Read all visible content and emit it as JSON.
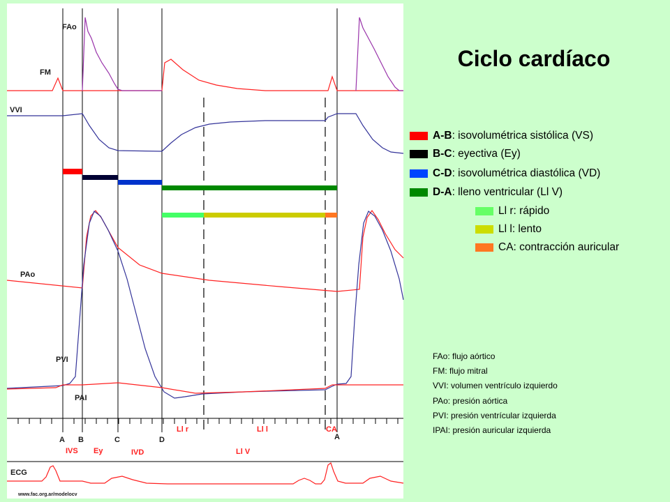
{
  "title": "Ciclo cardíaco",
  "trace_labels": {
    "fao": "FAo",
    "fm": "FM",
    "vvi": "VVI",
    "pao": "PAo",
    "pvi": "PVI",
    "pai": "PAI",
    "ecg": "ECG"
  },
  "markers": {
    "A": "A",
    "B": "B",
    "C": "C",
    "D": "D",
    "A2": "A"
  },
  "phase_labels": {
    "ivs": "IVS",
    "ey": "Ey",
    "ivd": "IVD",
    "llr": "Ll r",
    "lll": "Ll l",
    "ca": "CA",
    "llv": "Ll V"
  },
  "url": "www.fac.org.ar/modelocv",
  "legend": [
    {
      "key": "A-B",
      "text": ": isovolumétrica sistólica (VS)",
      "color": "#ff0000"
    },
    {
      "key": "B-C",
      "text": ": eyectiva (Ey)",
      "color": "#000000"
    },
    {
      "key": "C-D",
      "text": ": isovolumétrica diastólica (VD)",
      "color": "#0044ff"
    },
    {
      "key": "D-A",
      "text": ": lleno ventricular (Ll V)",
      "color": "#008800"
    },
    {
      "key": "",
      "text": "Ll r: rápido",
      "color": "#66ff66"
    },
    {
      "key": "",
      "text": "Ll l: lento",
      "color": "#ccdd00"
    },
    {
      "key": "",
      "text": "CA: contracción auricular",
      "color": "#ff7722"
    }
  ],
  "abbreviations": [
    "FAo: flujo aórtico",
    "FM:  flujo mitral",
    "VVI:  volumen ventrículo izquierdo",
    "PAo: presión aórtica",
    "PVI:  presión ventrícular izquierda",
    "IPAI: presión auricular izquierda"
  ],
  "colors": {
    "red": "#ff2020",
    "blue": "#333399",
    "background": "#ccffcc",
    "panel": "#ffffff"
  }
}
